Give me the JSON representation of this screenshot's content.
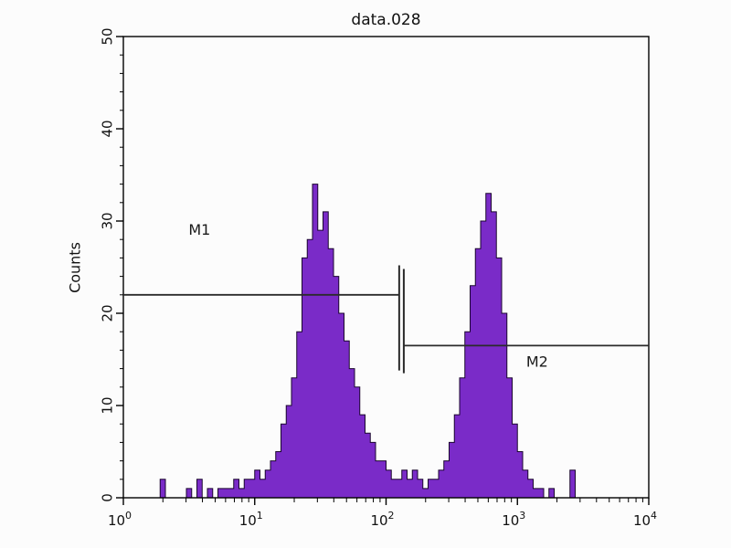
{
  "chart_data": {
    "type": "area",
    "plot_kind": "flow-cytometry-histogram",
    "title": "data.028",
    "xlabel": "",
    "ylabel": "Counts",
    "x_scale": "log10",
    "x_log_range": [
      0,
      4
    ],
    "ylim": [
      0,
      50
    ],
    "y_ticks": [
      0,
      10,
      20,
      30,
      40,
      50
    ],
    "y_minor_step": 2,
    "x_ticks": [
      {
        "mantissa": "10",
        "exponent": "0"
      },
      {
        "mantissa": "10",
        "exponent": "1"
      },
      {
        "mantissa": "10",
        "exponent": "2"
      },
      {
        "mantissa": "10",
        "exponent": "3"
      },
      {
        "mantissa": "10",
        "exponent": "4"
      }
    ],
    "bin_log_start": 0,
    "bin_log_step": 0.04,
    "counts": [
      0,
      0,
      0,
      0,
      0,
      0,
      0,
      2,
      0,
      0,
      0,
      0,
      1,
      0,
      2,
      0,
      1,
      0,
      1,
      1,
      1,
      2,
      1,
      2,
      2,
      3,
      2,
      3,
      4,
      5,
      8,
      10,
      13,
      18,
      26,
      28,
      34,
      29,
      31,
      27,
      24,
      20,
      17,
      14,
      12,
      9,
      7,
      6,
      4,
      4,
      3,
      2,
      2,
      3,
      2,
      3,
      2,
      1,
      2,
      2,
      3,
      4,
      6,
      9,
      13,
      18,
      23,
      27,
      30,
      33,
      31,
      26,
      20,
      13,
      8,
      5,
      3,
      2,
      1,
      1,
      0,
      1,
      0,
      0,
      0,
      3,
      0,
      0,
      0,
      0,
      0,
      0,
      0,
      0,
      0,
      0,
      0,
      0,
      0,
      0
    ],
    "fill_color": "#7a2bc8",
    "outline_color": "#1b062f",
    "axis_color": "#000000",
    "gate_color": "#2b2b2b",
    "gates": [
      {
        "label": "M1",
        "count_level": 22,
        "log_start": 0.0,
        "log_end": 2.1,
        "tick_log": 2.1,
        "tick_span": [
          13.8,
          25.2
        ],
        "label_log": 0.58,
        "label_count": 28.5
      },
      {
        "label": "M2",
        "count_level": 16.5,
        "log_start": 2.135,
        "log_end": 4.0,
        "tick_log": 2.135,
        "tick_span": [
          13.5,
          24.8
        ],
        "label_log": 3.15,
        "label_count": 14.2
      }
    ],
    "legend": "none",
    "grid": "off"
  }
}
